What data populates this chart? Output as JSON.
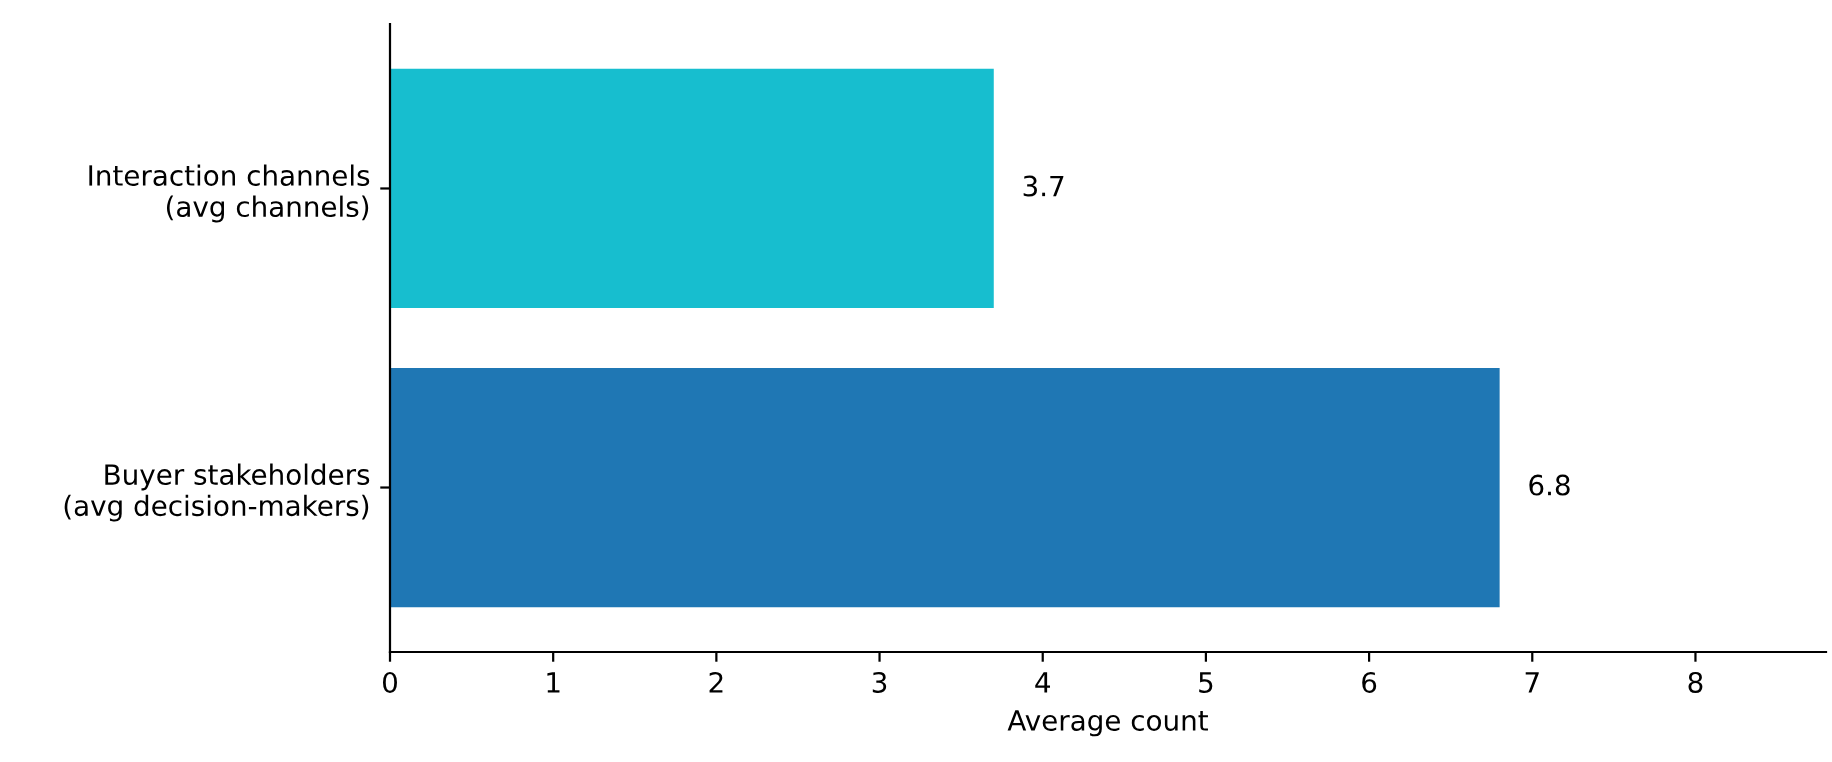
{
  "chart_data": {
    "type": "bar",
    "orientation": "horizontal",
    "xlabel": "Average count",
    "categories": [
      "Interaction channels\n(avg channels)",
      "Buyer stakeholders\n(avg decision-makers)"
    ],
    "values": [
      3.7,
      6.8
    ],
    "colors": [
      "#17becf",
      "#1f77b4"
    ],
    "xlim": [
      0,
      8.8
    ],
    "xticks": [
      0,
      1,
      2,
      3,
      4,
      5,
      6,
      7,
      8
    ],
    "data_labels": true,
    "grid": false,
    "legend": false
  }
}
